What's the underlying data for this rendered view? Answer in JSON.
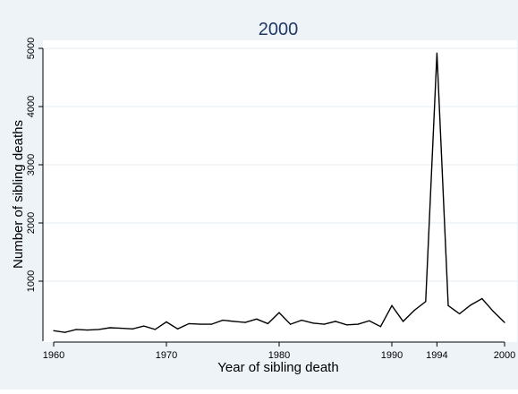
{
  "chart_data": {
    "type": "line",
    "title": "2000",
    "xlabel": "Year of sibling death",
    "ylabel": "Number of sibling deaths",
    "xlim": [
      1960,
      2000
    ],
    "ylim": [
      0,
      5100
    ],
    "x_ticks": [
      1960,
      1970,
      1980,
      1990,
      1994,
      2000
    ],
    "y_ticks": [
      1000,
      2000,
      3000,
      4000,
      5000
    ],
    "grid": true,
    "legend": "none",
    "colors": {
      "line": "#000000",
      "title": "#1f3864",
      "plot_bg": "#ffffff",
      "outer_bg": "#eef3f8",
      "grid": "#e6ecf2"
    },
    "series": [
      {
        "x": [
          1960,
          1961,
          1962,
          1963,
          1964,
          1965,
          1966,
          1967,
          1968,
          1969,
          1970,
          1971,
          1972,
          1973,
          1974,
          1975,
          1976,
          1977,
          1978,
          1979,
          1980,
          1981,
          1982,
          1983,
          1984,
          1985,
          1986,
          1987,
          1988,
          1989,
          1990,
          1991,
          1992,
          1993,
          1994,
          1995,
          1996,
          1997,
          1998,
          1999,
          2000
        ],
        "y": [
          150,
          120,
          170,
          160,
          170,
          200,
          190,
          180,
          230,
          170,
          300,
          180,
          270,
          260,
          260,
          330,
          310,
          290,
          350,
          270,
          460,
          260,
          330,
          280,
          260,
          310,
          250,
          260,
          320,
          220,
          580,
          310,
          500,
          650,
          4920,
          580,
          440,
          590,
          700,
          480,
          290
        ]
      }
    ]
  }
}
